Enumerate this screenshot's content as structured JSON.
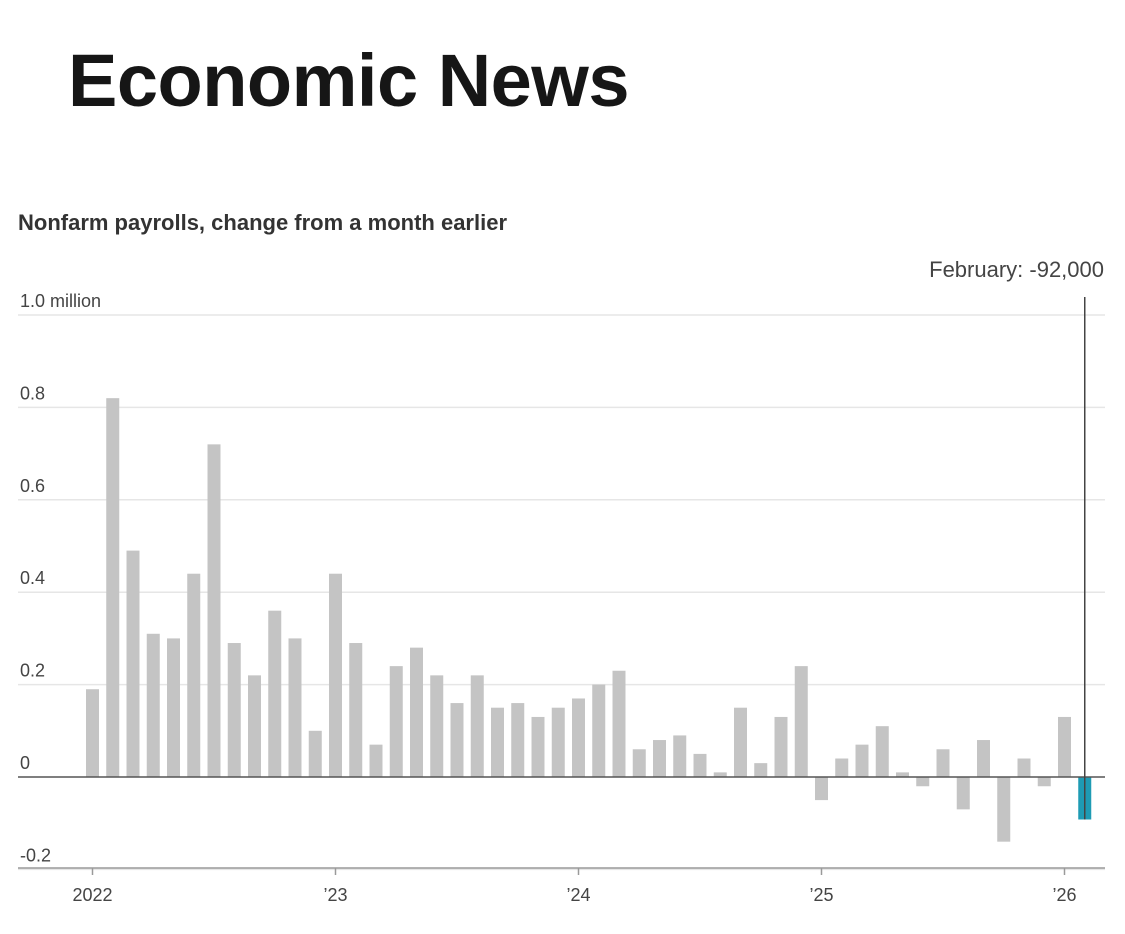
{
  "header": {
    "title": "Economic News"
  },
  "chart_data": {
    "type": "bar",
    "title": "Nonfarm payrolls, change from a month earlier",
    "xlabel": "",
    "ylabel": "",
    "unit": "million",
    "ylim": [
      -0.2,
      1.0
    ],
    "yticks": [
      {
        "value": 1.0,
        "label": "1.0 million"
      },
      {
        "value": 0.8,
        "label": "0.8"
      },
      {
        "value": 0.6,
        "label": "0.6"
      },
      {
        "value": 0.4,
        "label": "0.4"
      },
      {
        "value": 0.2,
        "label": "0.2"
      },
      {
        "value": 0,
        "label": "0"
      },
      {
        "value": -0.2,
        "label": "-0.2"
      }
    ],
    "xticks": [
      {
        "index": 0,
        "label": "2022"
      },
      {
        "index": 12,
        "label": "’23"
      },
      {
        "index": 24,
        "label": "’24"
      },
      {
        "index": 36,
        "label": "’25"
      },
      {
        "index": 48,
        "label": "’26"
      }
    ],
    "values": [
      0.19,
      0.82,
      0.49,
      0.31,
      0.3,
      0.44,
      0.72,
      0.29,
      0.22,
      0.36,
      0.3,
      0.1,
      0.44,
      0.29,
      0.07,
      0.24,
      0.28,
      0.22,
      0.16,
      0.22,
      0.15,
      0.16,
      0.13,
      0.15,
      0.17,
      0.2,
      0.23,
      0.06,
      0.08,
      0.09,
      0.05,
      0.01,
      0.15,
      0.03,
      0.13,
      0.24,
      -0.05,
      0.04,
      0.07,
      0.11,
      0.01,
      -0.02,
      0.06,
      -0.07,
      0.08,
      -0.14,
      0.04,
      -0.02,
      0.13,
      -0.092
    ],
    "highlight_index": 49,
    "annotation": "February: -92,000",
    "bar_color": "#c4c4c4",
    "highlight_color": "#1e9bb4",
    "grid": true
  }
}
